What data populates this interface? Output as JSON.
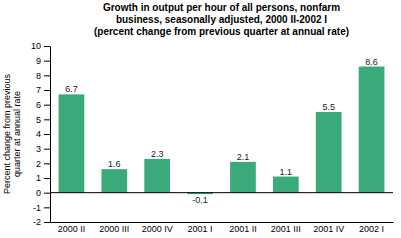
{
  "chart_data": {
    "type": "bar",
    "title": "Growth in output per hour of all persons, nonfarm\nbusiness, seasonally adjusted, 2000 II-2002 I\n(percent change from previous quarter at annual rate)",
    "y_label": "Percent change from previous\nquarter at annual rate",
    "categories": [
      "2000 II",
      "2000 III",
      "2000 IV",
      "2001 I",
      "2001 II",
      "2001 III",
      "2001 IV",
      "2002 I"
    ],
    "values": [
      6.7,
      1.6,
      2.3,
      -0.1,
      2.1,
      1.1,
      5.5,
      8.6
    ],
    "color": "#3aaa7a",
    "ylim": [
      -2,
      10
    ],
    "yticks": [
      -2,
      -1,
      0,
      1,
      2,
      3,
      4,
      5,
      6,
      7,
      8,
      9,
      10
    ],
    "grid": false,
    "data_labels": true
  }
}
